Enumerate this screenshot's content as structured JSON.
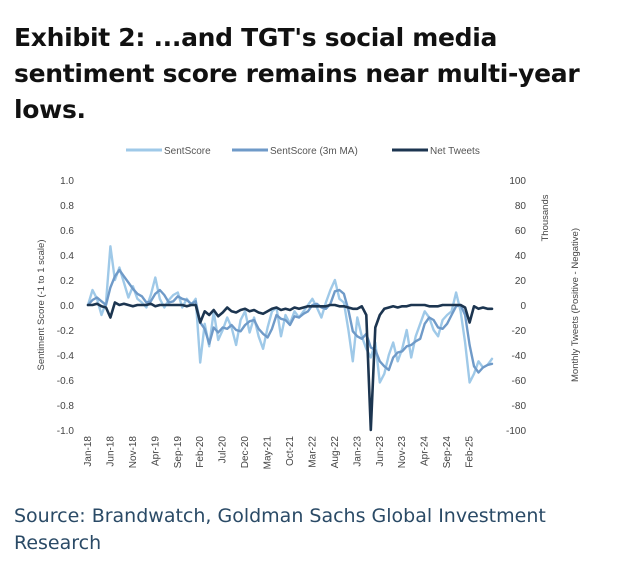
{
  "title": "Exhibit 2: ...and TGT's social media sentiment score remains near multi-year lows.",
  "source": "Source: Brandwatch, Goldman Sachs Global Investment Research",
  "chart_data": {
    "type": "line",
    "title": "",
    "ylabel_left": "Sentiment Score (-1 to 1 scale)",
    "ylabel_right": "Monthly Tweets (Positive - Negative)",
    "ylabel_right_units": "Thousands",
    "ylim_left": [
      -1.0,
      1.0
    ],
    "ylim_right": [
      -100,
      100
    ],
    "yticks_left": [
      "1.0",
      "0.8",
      "0.6",
      "0.4",
      "0.2",
      "0.0",
      "-0.2",
      "-0.4",
      "-0.6",
      "-0.8",
      "-1.0"
    ],
    "yticks_right": [
      "100",
      "80",
      "60",
      "40",
      "20",
      "0",
      "-20",
      "-40",
      "-60",
      "-80",
      "-100"
    ],
    "x_tick_labels": [
      "Jan-18",
      "Jun-18",
      "Nov-18",
      "Apr-19",
      "Sep-19",
      "Feb-20",
      "Jul-20",
      "Dec-20",
      "May-21",
      "Oct-21",
      "Mar-22",
      "Aug-22",
      "Jan-23",
      "Jun-23",
      "Nov-23",
      "Apr-24",
      "Sep-24",
      "Feb-25"
    ],
    "grid": false,
    "legend_position": "top",
    "x": [
      "Jan-18",
      "Feb-18",
      "Mar-18",
      "Apr-18",
      "May-18",
      "Jun-18",
      "Jul-18",
      "Aug-18",
      "Sep-18",
      "Oct-18",
      "Nov-18",
      "Dec-18",
      "Jan-19",
      "Feb-19",
      "Mar-19",
      "Apr-19",
      "May-19",
      "Jun-19",
      "Jul-19",
      "Aug-19",
      "Sep-19",
      "Oct-19",
      "Nov-19",
      "Dec-19",
      "Jan-20",
      "Feb-20",
      "Mar-20",
      "Apr-20",
      "May-20",
      "Jun-20",
      "Jul-20",
      "Aug-20",
      "Sep-20",
      "Oct-20",
      "Nov-20",
      "Dec-20",
      "Jan-21",
      "Feb-21",
      "Mar-21",
      "Apr-21",
      "May-21",
      "Jun-21",
      "Jul-21",
      "Aug-21",
      "Sep-21",
      "Oct-21",
      "Nov-21",
      "Dec-21",
      "Jan-22",
      "Feb-22",
      "Mar-22",
      "Apr-22",
      "May-22",
      "Jun-22",
      "Jul-22",
      "Aug-22",
      "Sep-22",
      "Oct-22",
      "Nov-22",
      "Dec-22",
      "Jan-23",
      "Feb-23",
      "Mar-23",
      "Apr-23",
      "May-23",
      "Jun-23",
      "Jul-23",
      "Aug-23",
      "Sep-23",
      "Oct-23",
      "Nov-23",
      "Dec-23",
      "Jan-24",
      "Feb-24",
      "Mar-24",
      "Apr-24",
      "May-24",
      "Jun-24",
      "Jul-24",
      "Aug-24",
      "Sep-24",
      "Oct-24",
      "Nov-24",
      "Dec-24",
      "Jan-25",
      "Feb-25",
      "Mar-25",
      "Apr-25",
      "May-25",
      "Jun-25",
      "Jul-25"
    ],
    "series": [
      {
        "name": "SentScore",
        "axis": "left",
        "color": "#9fc9e8",
        "values": [
          0.0,
          0.12,
          0.05,
          -0.08,
          0.02,
          0.47,
          0.2,
          0.3,
          0.18,
          0.06,
          0.15,
          0.05,
          0.02,
          -0.02,
          0.08,
          0.22,
          0.05,
          -0.02,
          0.04,
          0.08,
          0.1,
          -0.02,
          0.05,
          0.0,
          0.05,
          -0.46,
          -0.15,
          -0.33,
          -0.05,
          -0.28,
          -0.2,
          -0.1,
          -0.18,
          -0.32,
          -0.12,
          -0.05,
          -0.22,
          -0.1,
          -0.25,
          -0.35,
          -0.18,
          -0.05,
          -0.02,
          -0.25,
          -0.08,
          -0.15,
          -0.05,
          -0.1,
          -0.05,
          0.0,
          0.05,
          -0.02,
          -0.1,
          0.02,
          0.12,
          0.2,
          0.05,
          0.02,
          -0.2,
          -0.45,
          -0.1,
          -0.25,
          -0.35,
          -0.42,
          -0.3,
          -0.62,
          -0.55,
          -0.4,
          -0.3,
          -0.45,
          -0.35,
          -0.2,
          -0.42,
          -0.25,
          -0.15,
          -0.05,
          -0.1,
          -0.2,
          -0.25,
          -0.12,
          -0.08,
          -0.05,
          0.1,
          -0.05,
          -0.3,
          -0.62,
          -0.55,
          -0.45,
          -0.5,
          -0.48,
          -0.43
        ]
      },
      {
        "name": "SentScore (3m MA)",
        "axis": "left",
        "color": "#6f9ac8",
        "values": [
          0.0,
          0.04,
          0.06,
          0.03,
          0.0,
          0.14,
          0.23,
          0.28,
          0.23,
          0.18,
          0.13,
          0.09,
          0.07,
          0.02,
          0.03,
          0.09,
          0.12,
          0.08,
          0.02,
          0.03,
          0.07,
          0.05,
          0.04,
          0.01,
          0.03,
          -0.14,
          -0.19,
          -0.31,
          -0.18,
          -0.22,
          -0.18,
          -0.19,
          -0.16,
          -0.2,
          -0.21,
          -0.16,
          -0.13,
          -0.12,
          -0.19,
          -0.23,
          -0.26,
          -0.19,
          -0.08,
          -0.11,
          -0.12,
          -0.16,
          -0.09,
          -0.1,
          -0.07,
          -0.05,
          0.0,
          0.01,
          -0.02,
          -0.03,
          0.01,
          0.11,
          0.12,
          0.09,
          -0.04,
          -0.21,
          -0.25,
          -0.27,
          -0.23,
          -0.34,
          -0.36,
          -0.45,
          -0.49,
          -0.52,
          -0.42,
          -0.38,
          -0.37,
          -0.33,
          -0.32,
          -0.29,
          -0.27,
          -0.15,
          -0.1,
          -0.12,
          -0.18,
          -0.19,
          -0.15,
          -0.08,
          -0.01,
          0.0,
          -0.08,
          -0.32,
          -0.49,
          -0.54,
          -0.5,
          -0.48,
          -0.47
        ]
      },
      {
        "name": "Net Tweets",
        "axis": "right",
        "color": "#1c3550",
        "values": [
          0,
          0,
          1,
          -1,
          -2,
          -10,
          2,
          0,
          1,
          0,
          -1,
          0,
          0,
          0,
          1,
          -1,
          0,
          0,
          0,
          0,
          0,
          0,
          -1,
          0,
          0,
          -14,
          -5,
          -8,
          -4,
          -9,
          -6,
          -2,
          -5,
          -6,
          -4,
          -3,
          -5,
          -4,
          -6,
          -7,
          -5,
          -3,
          -2,
          -4,
          -3,
          -4,
          -2,
          -3,
          -2,
          -1,
          -1,
          -1,
          -1,
          -1,
          0,
          0,
          -1,
          -1,
          -2,
          -3,
          -3,
          -1,
          -8,
          -100,
          -18,
          -8,
          -3,
          -2,
          -1,
          -2,
          -1,
          -1,
          0,
          0,
          0,
          0,
          -1,
          -1,
          -1,
          0,
          0,
          0,
          0,
          0,
          -2,
          -14,
          -1,
          -3,
          -2,
          -3,
          -3
        ]
      }
    ]
  }
}
